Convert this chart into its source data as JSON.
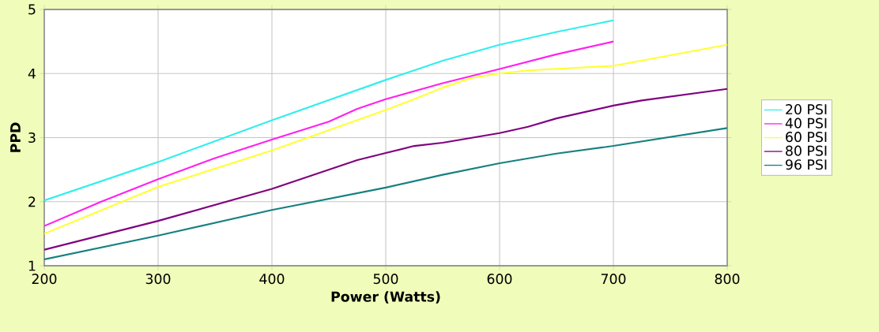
{
  "chart_data": {
    "type": "line",
    "xlabel": "Power (Watts)",
    "ylabel": "PPD",
    "xlim": [
      200,
      800
    ],
    "xticks": [
      200,
      300,
      400,
      500,
      600,
      700,
      800
    ],
    "ylim": [
      1,
      5
    ],
    "yticks": [
      1,
      2,
      3,
      4,
      5
    ],
    "grid": true,
    "legend": "right",
    "line_style": "solid",
    "marker": "none",
    "series": [
      {
        "name": "20 PSI",
        "color": "#33eeee",
        "x": [
          200,
          300,
          400,
          500,
          550,
          600,
          650,
          700
        ],
        "values": [
          2.02,
          2.62,
          3.27,
          3.9,
          4.2,
          4.45,
          4.65,
          4.83
        ]
      },
      {
        "name": "40 PSI",
        "color": "#ff22ee",
        "x": [
          200,
          250,
          300,
          350,
          400,
          450,
          475,
          500,
          550,
          600,
          650,
          700
        ],
        "values": [
          1.62,
          2.0,
          2.35,
          2.68,
          2.97,
          3.25,
          3.45,
          3.6,
          3.85,
          4.07,
          4.3,
          4.5
        ]
      },
      {
        "name": "60 PSI",
        "color": "#ffff33",
        "x": [
          200,
          300,
          400,
          500,
          525,
          550,
          575,
          600,
          625,
          700,
          800
        ],
        "values": [
          1.5,
          2.23,
          2.8,
          3.43,
          3.6,
          3.78,
          3.93,
          4.0,
          4.05,
          4.12,
          4.45
        ]
      },
      {
        "name": "80 PSI",
        "color": "#800080",
        "x": [
          200,
          300,
          400,
          475,
          500,
          525,
          550,
          600,
          625,
          650,
          700,
          725,
          800
        ],
        "values": [
          1.25,
          1.7,
          2.2,
          2.65,
          2.76,
          2.87,
          2.92,
          3.07,
          3.17,
          3.3,
          3.5,
          3.58,
          3.76
        ]
      },
      {
        "name": "96 PSI",
        "color": "#178080",
        "x": [
          200,
          300,
          400,
          500,
          550,
          600,
          650,
          700,
          800
        ],
        "values": [
          1.1,
          1.47,
          1.87,
          2.22,
          2.42,
          2.6,
          2.75,
          2.87,
          3.15
        ]
      }
    ]
  }
}
